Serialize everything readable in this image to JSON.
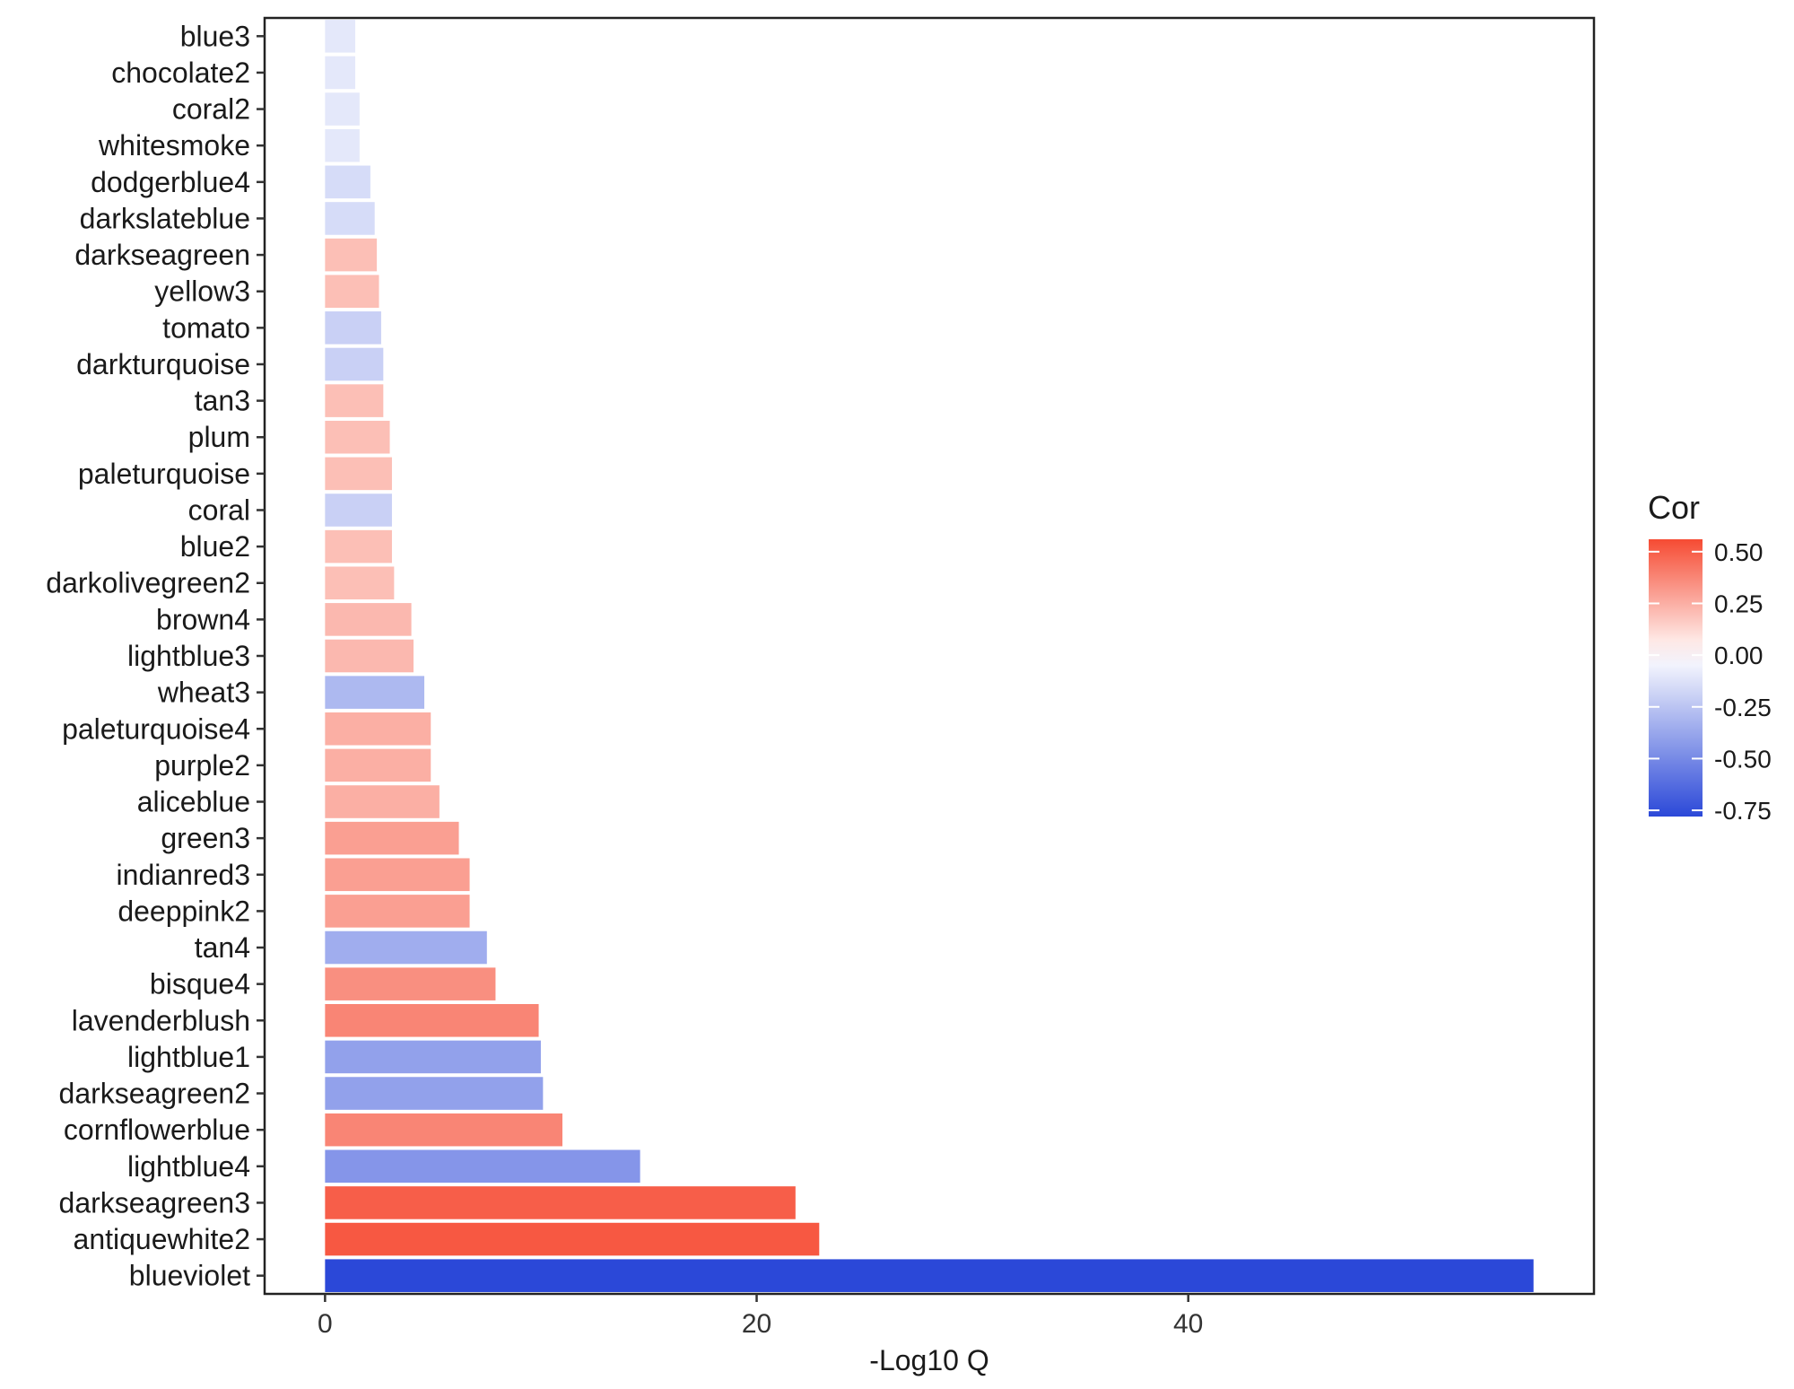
{
  "chart_data": {
    "type": "bar",
    "orientation": "horizontal",
    "categories": [
      "blue3",
      "chocolate2",
      "coral2",
      "whitesmoke",
      "dodgerblue4",
      "darkslateblue",
      "darkseagreen",
      "yellow3",
      "tomato",
      "darkturquoise",
      "tan3",
      "plum",
      "paleturquoise",
      "coral",
      "blue2",
      "darkolivegreen2",
      "brown4",
      "lightblue3",
      "wheat3",
      "paleturquoise4",
      "purple2",
      "aliceblue",
      "green3",
      "indianred3",
      "deeppink2",
      "tan4",
      "bisque4",
      "lavenderblush",
      "lightblue1",
      "darkseagreen2",
      "cornflowerblue",
      "lightblue4",
      "darkseagreen3",
      "antiquewhite2",
      "blueviolet"
    ],
    "values": [
      1.4,
      1.4,
      1.6,
      1.6,
      2.1,
      2.3,
      2.4,
      2.5,
      2.6,
      2.7,
      2.7,
      3.0,
      3.1,
      3.1,
      3.1,
      3.2,
      4.0,
      4.1,
      4.6,
      4.9,
      4.9,
      5.3,
      6.2,
      6.7,
      6.7,
      7.5,
      7.9,
      9.9,
      10.0,
      10.1,
      11.0,
      14.6,
      21.8,
      22.9,
      56.0
    ],
    "cor": [
      -0.1,
      -0.1,
      -0.1,
      -0.1,
      -0.15,
      -0.15,
      0.2,
      0.2,
      -0.2,
      -0.2,
      0.2,
      0.2,
      0.2,
      -0.2,
      0.2,
      0.2,
      0.22,
      0.22,
      -0.3,
      0.25,
      0.25,
      0.25,
      0.3,
      0.3,
      0.3,
      -0.35,
      0.35,
      0.38,
      -0.4,
      -0.4,
      0.38,
      -0.45,
      0.5,
      0.52,
      -0.78
    ],
    "xlabel": "-Log10 Q",
    "ylabel": "",
    "xlim": [
      -2.8,
      58.8
    ],
    "xticks": [
      0,
      20,
      40
    ],
    "legend": {
      "title": "Cor",
      "placement": "right",
      "range": [
        -0.78,
        0.56
      ],
      "ticks": [
        0.5,
        0.25,
        0.0,
        -0.25,
        -0.5,
        -0.75
      ],
      "tick_labels": [
        "0.50",
        "0.25",
        "0.00",
        "-0.25",
        "-0.50",
        "-0.75"
      ],
      "colors": {
        "low": "#2b48d8",
        "mid": "#ffffff",
        "high": "#f64b33"
      }
    }
  }
}
